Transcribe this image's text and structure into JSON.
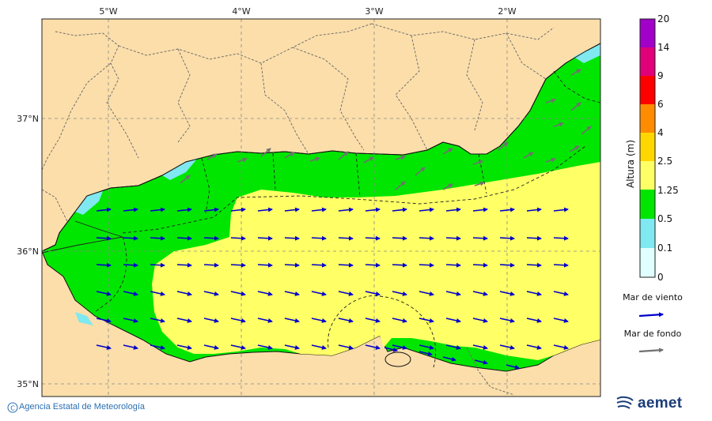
{
  "map": {
    "lon_labels": [
      "5°W",
      "4°W",
      "3°W",
      "2°W"
    ],
    "lat_labels": [
      "37°N",
      "36°N",
      "35°N"
    ],
    "colors": {
      "land": "#fbdeaa",
      "sea_0_01": "#e0ffff",
      "sea_01_05": "#80e8f0",
      "sea_05_125": "#00e600",
      "sea_125_25": "#ffff66",
      "wind_arrow": "#0000cc",
      "swell_arrow": "#707070"
    }
  },
  "colorbar": {
    "title": "Altura (m)",
    "levels": [
      "20",
      "14",
      "9",
      "6",
      "4",
      "2.5",
      "1.25",
      "0.5",
      "0.1",
      "0"
    ],
    "colors": [
      "#a000c8",
      "#e0007a",
      "#ff0000",
      "#ff8c00",
      "#ffd700",
      "#ffff66",
      "#00e600",
      "#80e8f0",
      "#e0ffff"
    ]
  },
  "legend": {
    "wind_label": "Mar de viento",
    "swell_label": "Mar de fondo"
  },
  "footer": {
    "credit": "Agencia Estatal de Meteorología",
    "logo_text": "aemet"
  }
}
